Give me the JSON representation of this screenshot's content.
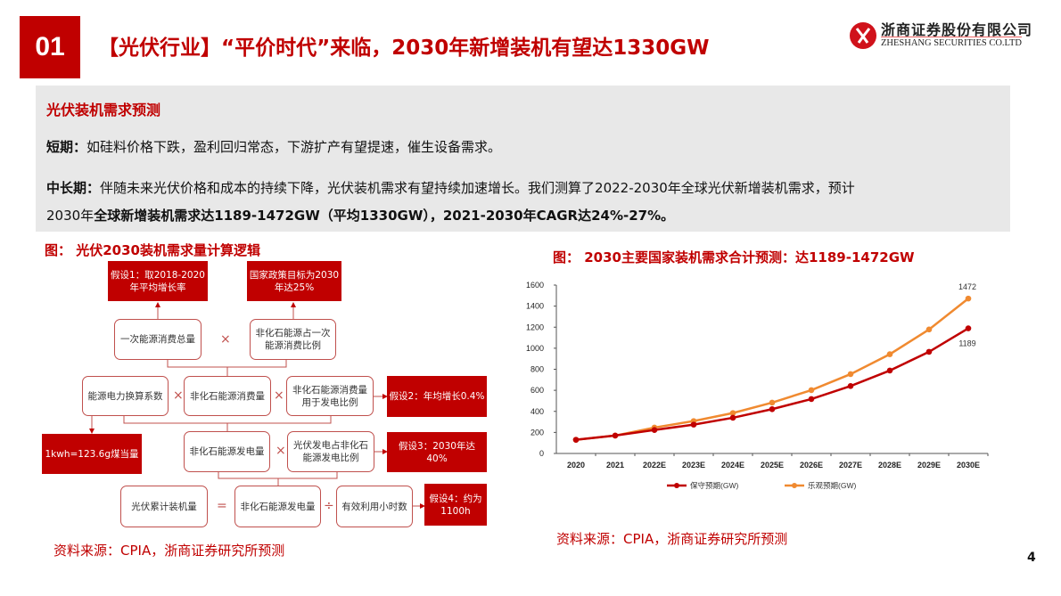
{
  "header": {
    "number": "01",
    "title": "【光伏行业】“平价时代”来临，2030年新增装机有望达1330GW",
    "brand_color": "#c00000"
  },
  "logo": {
    "cn": "浙商证券股份有限公司",
    "en": "ZHESHANG SECURITIES CO.LTD"
  },
  "summary": {
    "heading": "光伏装机需求预测",
    "short_label": "短期：",
    "short_text": "如硅料价格下跌，盈利回归常态，下游扩产有望提速，催生设备需求。",
    "long_label": "中长期：",
    "long_text1": "伴随未来光伏价格和成本的持续下降，光伏装机需求有望持续加速增长。我们测算了2022-2030年全球光伏新增装机需求，预计",
    "long_text2a": "2030年",
    "long_text2b": "全球新增装机需求达1189-1472GW（平均1330GW），2021-2030年CAGR达24%-27%。"
  },
  "diagram": {
    "title": "图：  光伏2030装机需求量计算逻辑",
    "assume1": "假设1：取2018-2020年平均增长率",
    "policy": "国家政策目标为2030年达25%",
    "primary_total": "一次能源消费总量",
    "nonfossil_share": "非化石能源占一次能源消费比例",
    "conversion": "能源电力换算系数",
    "nonfossil_consumption": "非化石能源消费量",
    "power_share": "非化石能源消费量用于发电比例",
    "assume2": "假设2：年均增长0.4%",
    "coal": "1kwh=123.6g煤当量",
    "nonfossil_gen": "非化石能源发电量",
    "pv_share": "光伏发电占非化石能源发电比例",
    "assume3": "假设3：2030年达40%",
    "pv_capacity": "光伏累计装机量",
    "nonfossil_gen2": "非化石能源发电量",
    "hours": "有效利用小时数",
    "assume4": "假设4：约为1100h",
    "ops": {
      "times": "×",
      "equals": "=",
      "divide": "÷"
    },
    "source": "资料来源：CPIA，浙商证券研究所预测"
  },
  "chart_data": {
    "type": "line",
    "title": "图：  2030主要国家装机需求合计预测：达1189-1472GW",
    "categories": [
      "2020",
      "2021",
      "2022E",
      "2023E",
      "2024E",
      "2025E",
      "2026E",
      "2027E",
      "2028E",
      "2029E",
      "2030E"
    ],
    "ylim": [
      0,
      1600
    ],
    "yticks": [
      0,
      200,
      400,
      600,
      800,
      1000,
      1200,
      1400,
      1600
    ],
    "grid": false,
    "legend_position": "bottom",
    "series": [
      {
        "name": "保守预期(GW)",
        "color": "#c00000",
        "values": [
          130,
          170,
          223,
          274,
          339,
          421,
          517,
          641,
          788,
          966,
          1189
        ]
      },
      {
        "name": "乐观预期(GW)",
        "color": "#f08a30",
        "values": [
          130,
          170,
          246,
          308,
          384,
          483,
          602,
          754,
          943,
          1178,
          1472
        ]
      }
    ],
    "annotations": [
      "1472",
      "1189"
    ],
    "source": "资料来源：CPIA，浙商证券研究所预测"
  },
  "page": {
    "number": "4"
  }
}
